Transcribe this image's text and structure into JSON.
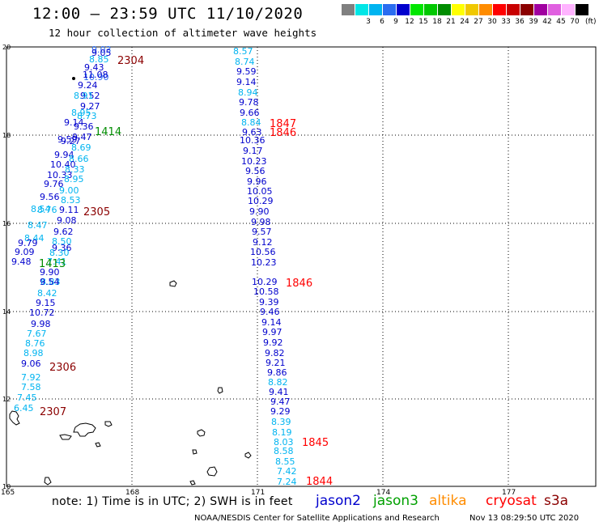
{
  "header": {
    "title": "12:00 — 23:59 UTC 11/10/2020",
    "subtitle": "12 hour collection of altimeter wave heights"
  },
  "color_scale": {
    "unit": "(ft)",
    "swatches": [
      {
        "color": "#808080",
        "label": ""
      },
      {
        "color": "#00e6e6",
        "label": "3"
      },
      {
        "color": "#00b4f0",
        "label": "6"
      },
      {
        "color": "#2a6cf0",
        "label": "9"
      },
      {
        "color": "#0000cd",
        "label": "12"
      },
      {
        "color": "#00e600",
        "label": "15"
      },
      {
        "color": "#00c800",
        "label": "18"
      },
      {
        "color": "#008c00",
        "label": "21"
      },
      {
        "color": "#ffff00",
        "label": "24"
      },
      {
        "color": "#f0c800",
        "label": "27"
      },
      {
        "color": "#ff8c00",
        "label": "30"
      },
      {
        "color": "#ff0000",
        "label": "33"
      },
      {
        "color": "#c80000",
        "label": "36"
      },
      {
        "color": "#8b0000",
        "label": "39"
      },
      {
        "color": "#a000a0",
        "label": "42"
      },
      {
        "color": "#e060e0",
        "label": "45"
      },
      {
        "color": "#ffb4ff",
        "label": "70"
      },
      {
        "color": "#000000",
        "label": ""
      }
    ]
  },
  "map": {
    "lon_labels": [
      "165",
      "168",
      "171",
      "174",
      "177"
    ],
    "lat_labels": [
      "20",
      "18",
      "16",
      "14",
      "12",
      "10"
    ]
  },
  "tracks": [
    {
      "name": "left-track",
      "color_key": "mixed",
      "values": [
        {
          "v": "9.03",
          "c": "#2a6cf0"
        },
        {
          "v": "9.05",
          "c": "#0000cd"
        },
        {
          "v": "8.85",
          "c": "#00b4f0"
        },
        {
          "v": "9.43",
          "c": "#0000cd"
        },
        {
          "v": "10.90",
          "c": "#2a6cf0"
        },
        {
          "v": "11.08",
          "c": "#0000cd"
        },
        {
          "v": "9.24",
          "c": "#0000cd"
        },
        {
          "v": "9.52",
          "c": "#0000cd"
        },
        {
          "v": "8.91",
          "c": "#00b4f0"
        },
        {
          "v": "9.27",
          "c": "#0000cd"
        },
        {
          "v": "8.95",
          "c": "#00b4f0"
        },
        {
          "v": "8.73",
          "c": "#00b4f0"
        },
        {
          "v": "9.14",
          "c": "#0000cd"
        },
        {
          "v": "9.36",
          "c": "#0000cd"
        },
        {
          "v": "9.27",
          "c": "#0000cd"
        },
        {
          "v": "9.47",
          "c": "#0000cd"
        },
        {
          "v": "9.59",
          "c": "#0000cd"
        },
        {
          "v": "8.69",
          "c": "#00b4f0"
        },
        {
          "v": "9.94",
          "c": "#0000cd"
        },
        {
          "v": "8.66",
          "c": "#00b4f0"
        },
        {
          "v": "10.40",
          "c": "#0000cd"
        },
        {
          "v": "8.33",
          "c": "#00b4f0"
        },
        {
          "v": "10.33",
          "c": "#0000cd"
        },
        {
          "v": "8.95",
          "c": "#00b4f0"
        },
        {
          "v": "9.76",
          "c": "#0000cd"
        },
        {
          "v": "9.00",
          "c": "#00b4f0"
        },
        {
          "v": "9.56",
          "c": "#0000cd"
        },
        {
          "v": "8.53",
          "c": "#00b4f0"
        },
        {
          "v": "8.76",
          "c": "#00b4f0"
        },
        {
          "v": "9.11",
          "c": "#0000cd"
        },
        {
          "v": "8.54",
          "c": "#00b4f0"
        },
        {
          "v": "9.08",
          "c": "#0000cd"
        },
        {
          "v": "8.47",
          "c": "#00b4f0"
        },
        {
          "v": "9.62",
          "c": "#0000cd"
        },
        {
          "v": "8.44",
          "c": "#00b4f0"
        },
        {
          "v": "8.50",
          "c": "#00b4f0"
        },
        {
          "v": "9.79",
          "c": "#0000cd"
        },
        {
          "v": "9.36",
          "c": "#0000cd"
        },
        {
          "v": "9.09",
          "c": "#0000cd"
        },
        {
          "v": "8.30",
          "c": "#00b4f0"
        },
        {
          "v": "9.48",
          "c": "#0000cd"
        },
        {
          "v": "7.41",
          "c": "#00b4f0"
        },
        {
          "v": "9.90",
          "c": "#0000cd"
        },
        {
          "v": "8.83",
          "c": "#00b4f0"
        },
        {
          "v": "9.54",
          "c": "#0000cd"
        },
        {
          "v": "8.42",
          "c": "#00b4f0"
        },
        {
          "v": "9.15",
          "c": "#0000cd"
        },
        {
          "v": "10.72",
          "c": "#0000cd"
        },
        {
          "v": "9.98",
          "c": "#0000cd"
        },
        {
          "v": "7.67",
          "c": "#00b4f0"
        },
        {
          "v": "8.76",
          "c": "#00b4f0"
        },
        {
          "v": "8.98",
          "c": "#00b4f0"
        },
        {
          "v": "9.06",
          "c": "#0000cd"
        },
        {
          "v": "7.92",
          "c": "#00b4f0"
        },
        {
          "v": "7.58",
          "c": "#00b4f0"
        },
        {
          "v": "7.45",
          "c": "#00b4f0"
        },
        {
          "v": "6.45",
          "c": "#00b4f0"
        }
      ]
    },
    {
      "name": "right-track",
      "color_key": "mixed",
      "values": [
        {
          "v": "8.57",
          "c": "#00b4f0"
        },
        {
          "v": "8.74",
          "c": "#00b4f0"
        },
        {
          "v": "9.59",
          "c": "#0000cd"
        },
        {
          "v": "9.14",
          "c": "#0000cd"
        },
        {
          "v": "8.94",
          "c": "#00b4f0"
        },
        {
          "v": "9.78",
          "c": "#0000cd"
        },
        {
          "v": "9.66",
          "c": "#0000cd"
        },
        {
          "v": "8.84",
          "c": "#00b4f0"
        },
        {
          "v": "9.63",
          "c": "#0000cd"
        },
        {
          "v": "10.36",
          "c": "#0000cd"
        },
        {
          "v": "9.17",
          "c": "#0000cd"
        },
        {
          "v": "10.23",
          "c": "#0000cd"
        },
        {
          "v": "9.56",
          "c": "#0000cd"
        },
        {
          "v": "9.96",
          "c": "#0000cd"
        },
        {
          "v": "10.05",
          "c": "#0000cd"
        },
        {
          "v": "10.29",
          "c": "#0000cd"
        },
        {
          "v": "9.90",
          "c": "#0000cd"
        },
        {
          "v": "9.98",
          "c": "#0000cd"
        },
        {
          "v": "9.57",
          "c": "#0000cd"
        },
        {
          "v": "9.12",
          "c": "#0000cd"
        },
        {
          "v": "10.56",
          "c": "#0000cd"
        },
        {
          "v": "10.23",
          "c": "#0000cd"
        },
        {
          "v": "10.29",
          "c": "#0000cd"
        },
        {
          "v": "10.58",
          "c": "#0000cd"
        },
        {
          "v": "9.39",
          "c": "#0000cd"
        },
        {
          "v": "9.46",
          "c": "#0000cd"
        },
        {
          "v": "9.14",
          "c": "#0000cd"
        },
        {
          "v": "9.97",
          "c": "#0000cd"
        },
        {
          "v": "9.92",
          "c": "#0000cd"
        },
        {
          "v": "9.82",
          "c": "#0000cd"
        },
        {
          "v": "9.21",
          "c": "#0000cd"
        },
        {
          "v": "9.86",
          "c": "#0000cd"
        },
        {
          "v": "8.82",
          "c": "#00b4f0"
        },
        {
          "v": "9.41",
          "c": "#0000cd"
        },
        {
          "v": "9.47",
          "c": "#0000cd"
        },
        {
          "v": "9.29",
          "c": "#0000cd"
        },
        {
          "v": "8.39",
          "c": "#00b4f0"
        },
        {
          "v": "8.19",
          "c": "#00b4f0"
        },
        {
          "v": "8.03",
          "c": "#00b4f0"
        },
        {
          "v": "8.58",
          "c": "#00b4f0"
        },
        {
          "v": "8.55",
          "c": "#00b4f0"
        },
        {
          "v": "7.42",
          "c": "#00b4f0"
        },
        {
          "v": "7.24",
          "c": "#00b4f0"
        }
      ]
    }
  ],
  "time_labels": [
    {
      "text": "2304",
      "color": "#8b0000"
    },
    {
      "text": "1414",
      "color": "#008c00"
    },
    {
      "text": "2305",
      "color": "#8b0000"
    },
    {
      "text": "1413",
      "color": "#008c00"
    },
    {
      "text": "2306",
      "color": "#8b0000"
    },
    {
      "text": "2307",
      "color": "#8b0000"
    },
    {
      "text": "1847",
      "color": "#ff0000"
    },
    {
      "text": "1846",
      "color": "#ff0000"
    },
    {
      "text": "1846",
      "color": "#ff0000"
    },
    {
      "text": "1845",
      "color": "#ff0000"
    },
    {
      "text": "1844",
      "color": "#ff0000"
    }
  ],
  "footer": {
    "note": "note: 1) Time is in UTC; 2) SWH is in feet",
    "legend": [
      {
        "label": "jason2",
        "color": "#0000cd"
      },
      {
        "label": "jason3",
        "color": "#00a000"
      },
      {
        "label": "altika",
        "color": "#ff8c00"
      },
      {
        "label": "cryosat",
        "color": "#ff0000"
      },
      {
        "label": "s3a",
        "color": "#8b0000"
      }
    ],
    "credit": "NOAA/NESDIS Center for Satellite Applications and Research",
    "timestamp": "Nov 13 08:29:50 UTC 2020"
  }
}
